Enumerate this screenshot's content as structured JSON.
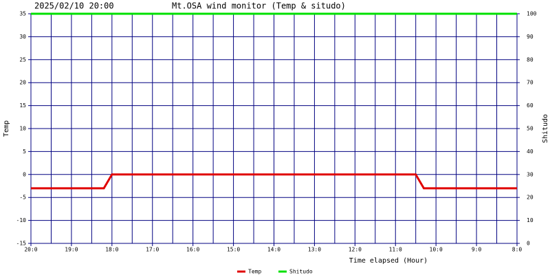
{
  "chart_data": {
    "type": "line",
    "timestamp": "2025/02/10 20:00",
    "title": "Mt.OSA wind monitor (Temp & situdo)",
    "xlabel": "Time elapsed (Hour)",
    "ylabel": "Temp",
    "y2label": "Shitudo",
    "xlim": [
      0,
      12
    ],
    "xticks": [
      {
        "value": 0,
        "label": "20:0"
      },
      {
        "value": 1,
        "label": "19:0"
      },
      {
        "value": 2,
        "label": "18:0"
      },
      {
        "value": 3,
        "label": "17:0"
      },
      {
        "value": 4,
        "label": "16:0"
      },
      {
        "value": 5,
        "label": "15:0"
      },
      {
        "value": 6,
        "label": "14:0"
      },
      {
        "value": 7,
        "label": "13:0"
      },
      {
        "value": 8,
        "label": "12:0"
      },
      {
        "value": 9,
        "label": "11:0"
      },
      {
        "value": 10,
        "label": "10:0"
      },
      {
        "value": 11,
        "label": "9:0"
      },
      {
        "value": 12,
        "label": "8:0"
      }
    ],
    "ylim": [
      -15,
      35
    ],
    "yticks": [
      -15,
      -10,
      -5,
      0,
      5,
      10,
      15,
      20,
      25,
      30,
      35
    ],
    "y2lim": [
      0,
      100
    ],
    "y2ticks": [
      0,
      10,
      20,
      30,
      40,
      50,
      60,
      70,
      80,
      90,
      100
    ],
    "grid": true,
    "legend": "bottom",
    "series": [
      {
        "name": "Temp",
        "color": "#e00000",
        "x": [
          0,
          1.8,
          2,
          9.5,
          9.7,
          12
        ],
        "values": [
          -3,
          -3,
          0,
          0,
          -3,
          -3
        ]
      },
      {
        "name": "Shitudo",
        "color": "#00e000",
        "axis": "y2",
        "x": [
          0,
          12
        ],
        "values": [
          100,
          100
        ]
      }
    ]
  }
}
